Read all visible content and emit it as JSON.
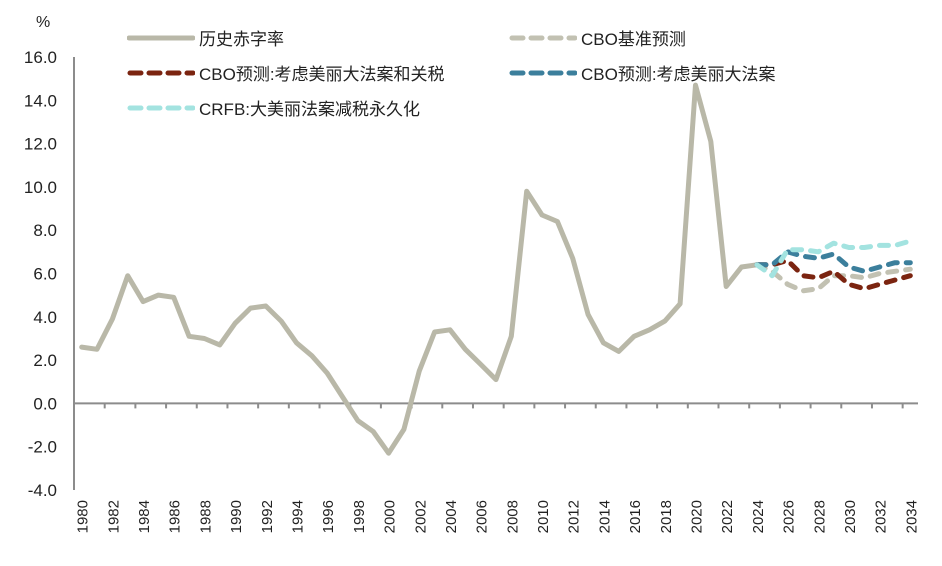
{
  "chart_data": {
    "type": "line",
    "title": "",
    "xlabel": "",
    "ylabel": "%",
    "ylim": [
      -4.0,
      16.0
    ],
    "yticks": [
      "16.0",
      "14.0",
      "12.0",
      "10.0",
      "8.0",
      "6.0",
      "4.0",
      "2.0",
      "0.0",
      "-2.0",
      "-4.0"
    ],
    "grid": false,
    "legend_position": "top",
    "x": [
      1980,
      1981,
      1982,
      1983,
      1984,
      1985,
      1986,
      1987,
      1988,
      1989,
      1990,
      1991,
      1992,
      1993,
      1994,
      1995,
      1996,
      1997,
      1998,
      1999,
      2000,
      2001,
      2002,
      2003,
      2004,
      2005,
      2006,
      2007,
      2008,
      2009,
      2010,
      2011,
      2012,
      2013,
      2014,
      2015,
      2016,
      2017,
      2018,
      2019,
      2020,
      2021,
      2022,
      2023,
      2024,
      2025,
      2026,
      2027,
      2028,
      2029,
      2030,
      2031,
      2032,
      2033,
      2034
    ],
    "xtick_labels": [
      "1980",
      "1982",
      "1984",
      "1986",
      "1988",
      "1990",
      "1992",
      "1994",
      "1996",
      "1998",
      "2000",
      "2002",
      "2004",
      "2006",
      "2008",
      "2010",
      "2012",
      "2014",
      "2016",
      "2018",
      "2020",
      "2022",
      "2024",
      "2026",
      "2028",
      "2030",
      "2032",
      "2034"
    ],
    "series": [
      {
        "name": "历史赤字率",
        "color": "#b9b8a8",
        "style": "solid",
        "x": [
          1980,
          1981,
          1982,
          1983,
          1984,
          1985,
          1986,
          1987,
          1988,
          1989,
          1990,
          1991,
          1992,
          1993,
          1994,
          1995,
          1996,
          1997,
          1998,
          1999,
          2000,
          2001,
          2002,
          2003,
          2004,
          2005,
          2006,
          2007,
          2008,
          2009,
          2010,
          2011,
          2012,
          2013,
          2014,
          2015,
          2016,
          2017,
          2018,
          2019,
          2020,
          2021,
          2022,
          2023,
          2024
        ],
        "values": [
          2.6,
          2.5,
          3.9,
          5.9,
          4.7,
          5.0,
          4.9,
          3.1,
          3.0,
          2.7,
          3.7,
          4.4,
          4.5,
          3.8,
          2.8,
          2.2,
          1.4,
          0.3,
          -0.8,
          -1.3,
          -2.3,
          -1.2,
          1.5,
          3.3,
          3.4,
          2.5,
          1.8,
          1.1,
          3.1,
          9.8,
          8.7,
          8.4,
          6.7,
          4.1,
          2.8,
          2.4,
          3.1,
          3.4,
          3.8,
          4.6,
          14.7,
          12.1,
          5.4,
          6.3,
          6.4
        ]
      },
      {
        "name": "CBO基准预测",
        "color": "#c2c1b2",
        "style": "dashed",
        "x": [
          2024,
          2025,
          2026,
          2027,
          2028,
          2029,
          2030,
          2031,
          2032,
          2033,
          2034
        ],
        "values": [
          6.4,
          6.1,
          5.5,
          5.2,
          5.3,
          5.9,
          5.9,
          5.8,
          6.0,
          6.1,
          6.2
        ]
      },
      {
        "name": "CBO预测:考虑美丽大法案和关税",
        "color": "#7b2410",
        "style": "dashed",
        "x": [
          2024,
          2025,
          2026,
          2027,
          2028,
          2029,
          2030,
          2031,
          2032,
          2033,
          2034
        ],
        "values": [
          6.4,
          6.4,
          6.6,
          5.9,
          5.8,
          6.1,
          5.5,
          5.3,
          5.5,
          5.7,
          5.9
        ]
      },
      {
        "name": "CBO预测:考虑美丽大法案",
        "color": "#3c7f9c",
        "style": "dashed",
        "x": [
          2024,
          2025,
          2026,
          2027,
          2028,
          2029,
          2030,
          2031,
          2032,
          2033,
          2034
        ],
        "values": [
          6.4,
          6.4,
          7.0,
          6.8,
          6.7,
          6.9,
          6.3,
          6.1,
          6.3,
          6.5,
          6.5
        ]
      },
      {
        "name": "CRFB:大美丽法案减税永久化",
        "color": "#a3e3e0",
        "style": "dashed",
        "x": [
          2024,
          2025,
          2026,
          2027,
          2028,
          2029,
          2030,
          2031,
          2032,
          2033,
          2034
        ],
        "values": [
          6.4,
          5.9,
          7.1,
          7.1,
          7.0,
          7.4,
          7.2,
          7.2,
          7.3,
          7.3,
          7.5
        ]
      }
    ]
  },
  "legend": {
    "items": [
      {
        "label": "历史赤字率"
      },
      {
        "label": "CBO基准预测"
      },
      {
        "label": "CBO预测:考虑美丽大法案和关税"
      },
      {
        "label": "CBO预测:考虑美丽大法案"
      },
      {
        "label": "CRFB:大美丽法案减税永久化"
      }
    ]
  },
  "axis": {
    "y_unit": "%"
  }
}
